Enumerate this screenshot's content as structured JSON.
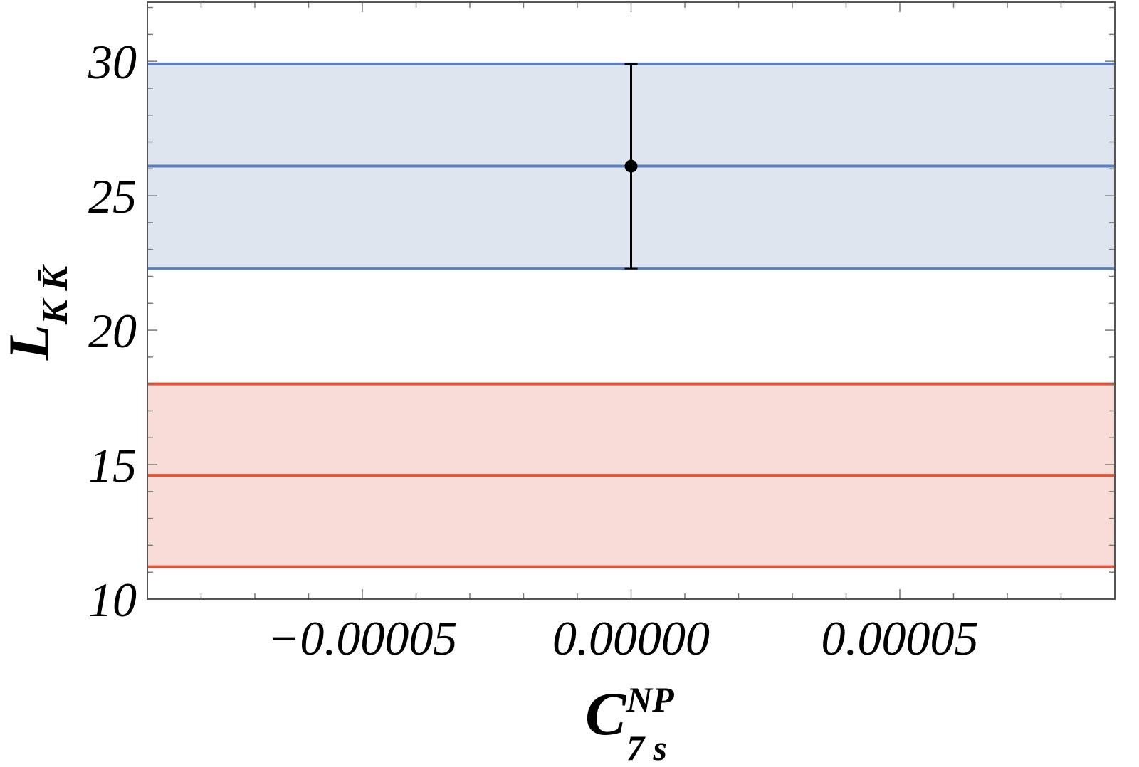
{
  "chart_data": {
    "type": "line",
    "xlabel": {
      "main": "C",
      "subscript": "7 s",
      "superscript": "NP"
    },
    "ylabel": {
      "main": "L",
      "subscript": "K K̄"
    },
    "xlim": [
      -9e-05,
      9e-05
    ],
    "ylim": [
      10,
      32.2
    ],
    "x_ticks": [
      -5e-05,
      0.0,
      5e-05
    ],
    "x_tick_labels": [
      "−0.00005",
      "0.00000",
      "0.00005"
    ],
    "y_ticks": [
      10,
      15,
      20,
      25,
      30
    ],
    "y_tick_labels": [
      "10",
      "15",
      "20",
      "25",
      "30"
    ],
    "grid": false,
    "bands": [
      {
        "color": "#5b7fbf",
        "fill": "#dfe5ef",
        "lower": 22.3,
        "central": 26.1,
        "upper": 29.9
      },
      {
        "color": "#e0553a",
        "fill": "#f9dcd8",
        "lower": 11.2,
        "central": 14.6,
        "upper": 18.0
      }
    ],
    "points": [
      {
        "x": 0.0,
        "y": 26.1,
        "y_err_low": 22.3,
        "y_err_high": 29.9
      }
    ]
  }
}
